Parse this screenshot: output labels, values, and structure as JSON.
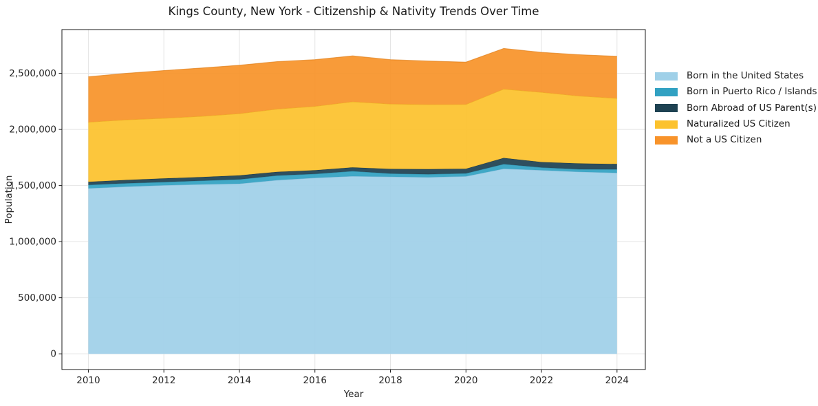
{
  "header": {
    "title": "Kings County, New York - Citizenship & Nativity Trends Over Time"
  },
  "chart_data": {
    "type": "area",
    "stacked": true,
    "title": "Kings County, New York - Citizenship & Nativity Trends Over Time",
    "xlabel": "Year",
    "ylabel": "Population",
    "grid": true,
    "legend_position": "right-outside",
    "x": [
      2010,
      2011,
      2012,
      2013,
      2014,
      2015,
      2016,
      2017,
      2018,
      2019,
      2020,
      2021,
      2022,
      2023,
      2024
    ],
    "series": [
      {
        "name": "Born in the United States",
        "color": "#9fd0e8",
        "edge": "#7fb6d4",
        "values": [
          1475000,
          1490000,
          1502000,
          1510000,
          1516000,
          1548000,
          1568000,
          1583000,
          1578000,
          1574000,
          1582000,
          1650000,
          1636000,
          1622000,
          1613000
        ]
      },
      {
        "name": "Born in Puerto Rico / Islands",
        "color": "#31a1c2",
        "edge": "#27859f",
        "values": [
          30000,
          30000,
          29000,
          33000,
          39000,
          41000,
          35000,
          45000,
          29000,
          27000,
          26000,
          41000,
          25000,
          23000,
          31000
        ]
      },
      {
        "name": "Born Abroad of US Parent(s)",
        "color": "#1e4252",
        "edge": "#142d39",
        "values": [
          28000,
          30000,
          32000,
          33000,
          35000,
          33000,
          33000,
          34000,
          41000,
          45000,
          42000,
          55000,
          48000,
          52000,
          48000
        ]
      },
      {
        "name": "Naturalized US Citizen",
        "color": "#fcc22d",
        "edge": "#e3a512",
        "values": [
          532000,
          536000,
          537000,
          542000,
          551000,
          560000,
          570000,
          585000,
          579000,
          576000,
          573000,
          614000,
          622000,
          601000,
          586000
        ]
      },
      {
        "name": "Not a US Citizen",
        "color": "#f8932a",
        "edge": "#dd7b14",
        "values": [
          405000,
          414000,
          425000,
          430000,
          431000,
          423000,
          416000,
          409000,
          395000,
          388000,
          377000,
          362000,
          356000,
          368000,
          374000
        ]
      }
    ],
    "xticks": {
      "values": [
        2010,
        2012,
        2014,
        2016,
        2018,
        2020,
        2022,
        2024
      ],
      "labels": [
        "2010",
        "2012",
        "2014",
        "2016",
        "2018",
        "2020",
        "2022",
        "2024"
      ]
    },
    "yticks": {
      "values": [
        0,
        500000,
        1000000,
        1500000,
        2000000,
        2500000
      ],
      "labels": [
        "0",
        "500,000",
        "1,000,000",
        "1,500,000",
        "2,000,000",
        "2,500,000"
      ]
    },
    "xlim": [
      2009.3,
      2024.75
    ],
    "ylim": [
      -140000,
      2890000
    ]
  }
}
